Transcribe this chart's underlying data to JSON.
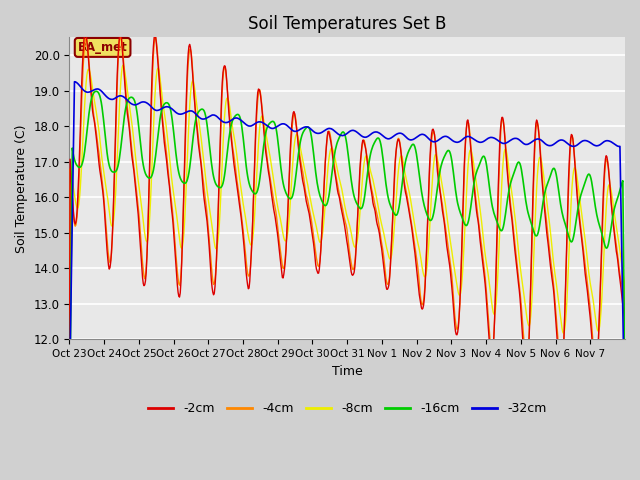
{
  "title": "Soil Temperatures Set B",
  "xlabel": "Time",
  "ylabel": "Soil Temperature (C)",
  "ylim": [
    12.0,
    20.5
  ],
  "yticks": [
    12.0,
    13.0,
    14.0,
    15.0,
    16.0,
    17.0,
    18.0,
    19.0,
    20.0
  ],
  "background_color": "#e8e8e8",
  "fig_bg_color": "#d0d0d0",
  "annotation_text": "BA_met",
  "annotation_color": "#8B0000",
  "annotation_bg": "#f0e060",
  "series_colors": {
    "-2cm": "#dd0000",
    "-4cm": "#ff8800",
    "-8cm": "#eeee00",
    "-16cm": "#00cc00",
    "-32cm": "#0000dd"
  },
  "legend_colors": [
    "#dd0000",
    "#ff8800",
    "#eeee00",
    "#00cc00",
    "#0000dd"
  ],
  "legend_labels": [
    "-2cm",
    "-4cm",
    "-8cm",
    "-16cm",
    "-32cm"
  ],
  "day_labels": [
    "Oct 23",
    "Oct 24",
    "Oct 25",
    "Oct 26",
    "Oct 27",
    "Oct 28",
    "Oct 29",
    "Oct 30",
    "Oct 31",
    "Nov 1",
    "Nov 2",
    "Nov 3",
    "Nov 4",
    "Nov 5",
    "Nov 6",
    "Nov 7"
  ],
  "n_days": 16,
  "samples_per_day": 48
}
